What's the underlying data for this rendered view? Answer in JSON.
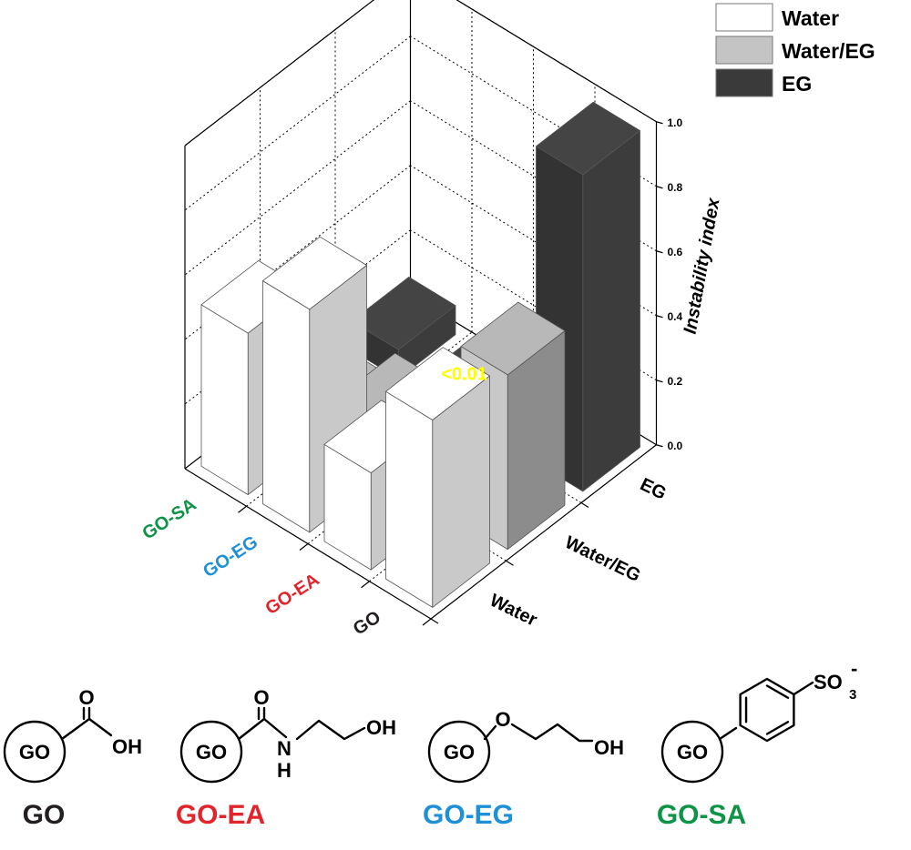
{
  "chart_data": {
    "type": "bar3d",
    "zlabel": "Instability index",
    "zlim": [
      0,
      1
    ],
    "z_ticks": [
      "0.0",
      "0.2",
      "0.4",
      "0.6",
      "0.8",
      "1.0"
    ],
    "categories": [
      "GO",
      "GO-EA",
      "GO-EG",
      "GO-SA"
    ],
    "category_colors": [
      "#231f20",
      "#e3242b",
      "#1e90d8",
      "#0d9447"
    ],
    "series": [
      {
        "name": "Water",
        "color": "#ffffff",
        "values": [
          0.58,
          0.3,
          0.69,
          0.5
        ]
      },
      {
        "name": "Water/EG",
        "color": "#c4c4c4",
        "values": [
          0.54,
          0.03,
          0.15,
          0.07
        ]
      },
      {
        "name": "EG",
        "color": "#3a3a3a",
        "values": [
          0.98,
          0.01,
          0.005,
          0.09
        ]
      }
    ],
    "annotation": "<0.01",
    "legend_position": "top-right"
  },
  "structures": [
    {
      "name": "GO",
      "core": "GO",
      "color": "#231f20",
      "atoms": [
        "O",
        "OH"
      ]
    },
    {
      "name": "GO-EA",
      "core": "GO",
      "color": "#e3242b",
      "atoms": [
        "O",
        "N",
        "H",
        "OH"
      ]
    },
    {
      "name": "GO-EG",
      "core": "GO",
      "color": "#1e90d8",
      "atoms": [
        "O",
        "OH"
      ]
    },
    {
      "name": "GO-SA",
      "core": "GO",
      "color": "#0d9447",
      "atoms": [
        "SO",
        "3",
        "-"
      ]
    }
  ]
}
